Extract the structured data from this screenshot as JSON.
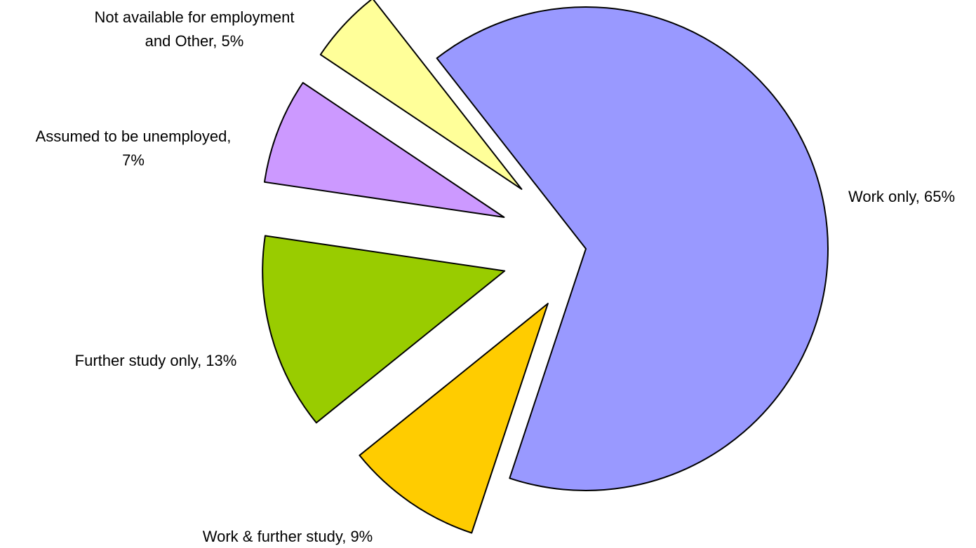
{
  "chart_data": {
    "type": "pie",
    "title": "",
    "exploded": true,
    "slices": [
      {
        "name": "Work only",
        "value": 65,
        "label_lines": [
          "Work only, 65%"
        ],
        "color": "#9999FF"
      },
      {
        "name": "Work & further study",
        "value": 9,
        "label_lines": [
          "Work & further study, 9%"
        ],
        "color": "#FFCC00"
      },
      {
        "name": "Further study only",
        "value": 13,
        "label_lines": [
          "Further study only, 13%"
        ],
        "color": "#99CC00"
      },
      {
        "name": "Assumed to be unemployed",
        "value": 7,
        "label_lines": [
          "Assumed to be unemployed,",
          "7%"
        ],
        "color": "#CC99FF"
      },
      {
        "name": "Not available for employment and Other",
        "value": 5,
        "label_lines": [
          "Not available for employment",
          "and Other, 5%"
        ],
        "color": "#FFFF99"
      }
    ]
  }
}
